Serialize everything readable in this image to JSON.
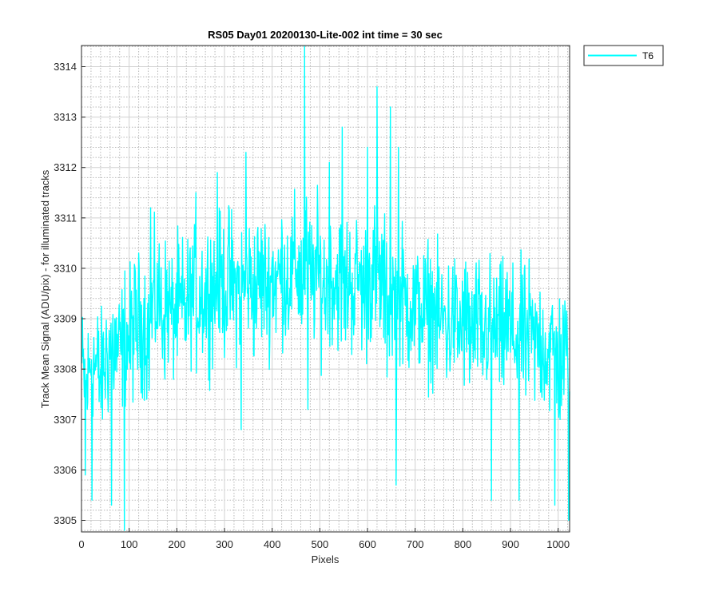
{
  "chart_data": {
    "type": "line",
    "title": "RS05 Day01 20200130-Lite-002 int time = 30 sec",
    "xlabel": "Pixels",
    "ylabel": "Track Mean Signal (ADU/pix) - for illuminated tracks",
    "xlim": [
      0,
      1024
    ],
    "ylim": [
      3304.77,
      3314.42
    ],
    "xticks": [
      0,
      100,
      200,
      300,
      400,
      500,
      600,
      700,
      800,
      900,
      1000
    ],
    "yticks": [
      3305,
      3306,
      3307,
      3308,
      3309,
      3310,
      3311,
      3312,
      3313,
      3314
    ],
    "grid": true,
    "minor_grid": true,
    "legend_position": "outside-top-right",
    "series": [
      {
        "name": "T6",
        "color": "#00ffff",
        "x_start": 1,
        "x_step": 10,
        "values": [
          3308.0,
          3307.6,
          3308.3,
          3308.0,
          3307.8,
          3308.2,
          3308.5,
          3308.4,
          3308.3,
          3308.7,
          3308.5,
          3308.9,
          3308.7,
          3309.0,
          3308.6,
          3309.3,
          3309.4,
          3309.1,
          3309.3,
          3309.0,
          3309.2,
          3309.1,
          3309.2,
          3309.5,
          3309.3,
          3309.6,
          3309.4,
          3309.7,
          3309.5,
          3309.8,
          3309.6,
          3309.8,
          3309.5,
          3309.7,
          3309.6,
          3309.8,
          3309.5,
          3309.7,
          3309.8,
          3309.6,
          3309.9,
          3309.7,
          3310.0,
          3309.8,
          3309.9,
          3310.1,
          3309.7,
          3310.2,
          3309.6,
          3310.0,
          3309.8,
          3309.6,
          3309.9,
          3309.7,
          3309.8,
          3309.5,
          3309.8,
          3309.6,
          3309.9,
          3309.5,
          3309.7,
          3310.0,
          3309.6,
          3309.8,
          3309.2,
          3309.5,
          3309.3,
          3309.5,
          3309.2,
          3309.4,
          3309.1,
          3309.3,
          3309.0,
          3309.2,
          3309.1,
          3308.9,
          3309.0,
          3308.8,
          3309.1,
          3308.7,
          3309.0,
          3308.8,
          3308.6,
          3309.0,
          3308.5,
          3308.9,
          3308.7,
          3308.8,
          3308.6,
          3308.9,
          3308.7,
          3308.6,
          3308.8,
          3308.5,
          3308.7,
          3308.4,
          3308.6,
          3308.5,
          3308.3,
          3308.5,
          3308.1,
          3308.3,
          3308.2
        ],
        "amplitude": [
          1.1,
          1.2,
          1.0,
          1.3,
          1.1,
          1.2,
          1.2,
          1.3,
          1.1,
          1.2,
          1.3,
          1.2,
          1.1,
          1.2,
          1.3,
          1.2,
          1.1,
          1.3,
          1.2,
          1.1,
          1.2,
          1.3,
          1.2,
          1.1,
          1.2,
          1.3,
          1.2,
          1.3,
          1.2,
          1.1,
          1.2,
          1.3,
          1.2,
          1.2,
          1.3,
          1.1,
          1.2,
          1.3,
          1.2,
          1.1,
          1.3,
          1.2,
          1.2,
          1.3,
          1.1,
          1.2,
          1.4,
          1.2,
          1.3,
          1.2,
          1.3,
          1.2,
          1.2,
          1.1,
          1.2,
          1.3,
          1.2,
          1.2,
          1.1,
          1.2,
          1.3,
          1.2,
          1.4,
          1.2,
          1.3,
          1.2,
          1.1,
          1.2,
          1.3,
          1.2,
          1.1,
          1.2,
          1.3,
          1.2,
          1.1,
          1.2,
          1.2,
          1.3,
          1.1,
          1.2,
          1.2,
          1.3,
          1.2,
          1.1,
          1.2,
          1.3,
          1.2,
          1.1,
          1.2,
          1.3,
          1.2,
          1.2,
          1.1,
          1.3,
          1.2,
          1.1,
          1.2,
          1.3,
          1.2,
          1.1,
          1.3,
          1.2,
          1.2
        ],
        "spikes": [
          {
            "x": 8,
            "y": 3305.9
          },
          {
            "x": 22,
            "y": 3305.4
          },
          {
            "x": 63,
            "y": 3305.3
          },
          {
            "x": 90,
            "y": 3304.8
          },
          {
            "x": 120,
            "y": 3310.3
          },
          {
            "x": 145,
            "y": 3311.2
          },
          {
            "x": 240,
            "y": 3311.5
          },
          {
            "x": 285,
            "y": 3311.9
          },
          {
            "x": 335,
            "y": 3306.8
          },
          {
            "x": 345,
            "y": 3312.3
          },
          {
            "x": 468,
            "y": 3314.4
          },
          {
            "x": 475,
            "y": 3307.2
          },
          {
            "x": 520,
            "y": 3312.1
          },
          {
            "x": 547,
            "y": 3312.8
          },
          {
            "x": 600,
            "y": 3312.4
          },
          {
            "x": 620,
            "y": 3313.6
          },
          {
            "x": 648,
            "y": 3313.2
          },
          {
            "x": 660,
            "y": 3305.7
          },
          {
            "x": 665,
            "y": 3312.4
          },
          {
            "x": 860,
            "y": 3305.4
          },
          {
            "x": 918,
            "y": 3305.4
          },
          {
            "x": 993,
            "y": 3305.3
          },
          {
            "x": 1022,
            "y": 3305.0
          }
        ]
      }
    ]
  }
}
